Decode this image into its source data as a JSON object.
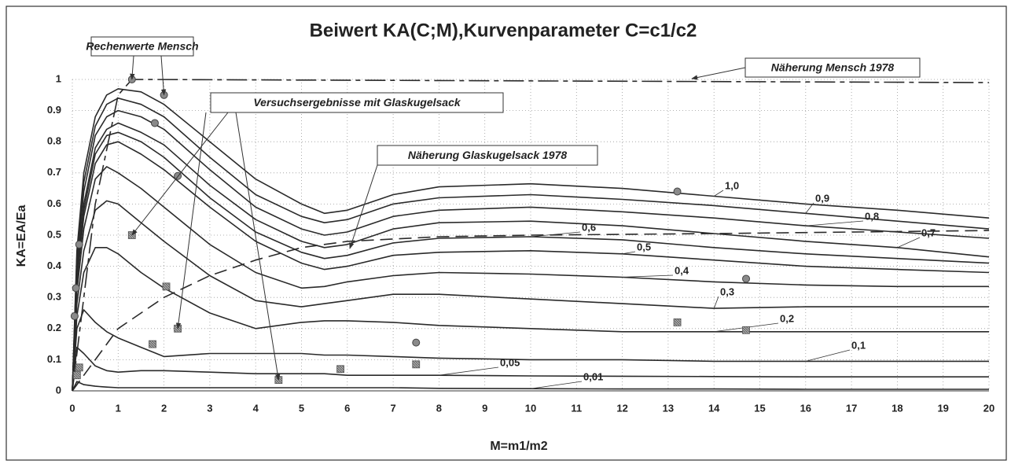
{
  "chart_data": {
    "type": "line",
    "title": "Beiwert KA(C;M),Kurvenparameter C=c1/c2",
    "x_label": "M=m1/m2",
    "y_label": "KA=EA/Ea",
    "xlim": [
      0,
      20
    ],
    "ylim": [
      0,
      1
    ],
    "xticks": [
      0,
      1,
      2,
      3,
      4,
      5,
      6,
      7,
      8,
      9,
      10,
      11,
      12,
      13,
      14,
      15,
      16,
      17,
      18,
      19,
      20
    ],
    "yticks": [
      0,
      0.1,
      0.2,
      0.3,
      0.4,
      0.5,
      0.6,
      0.7,
      0.8,
      0.9,
      1
    ],
    "grid": true,
    "x": [
      0,
      0.1,
      0.25,
      0.5,
      0.75,
      1,
      1.5,
      2,
      3,
      4,
      5,
      5.5,
      6,
      7,
      8,
      10,
      12,
      14,
      16,
      18,
      20
    ],
    "series": [
      {
        "name": "1,0",
        "color": "#2a2a2a",
        "values": [
          0,
          0.45,
          0.7,
          0.88,
          0.95,
          0.97,
          0.96,
          0.92,
          0.8,
          0.68,
          0.6,
          0.57,
          0.58,
          0.63,
          0.655,
          0.665,
          0.65,
          0.625,
          0.6,
          0.58,
          0.555
        ]
      },
      {
        "name": "0,9",
        "color": "#2a2a2a",
        "values": [
          0,
          0.43,
          0.67,
          0.85,
          0.92,
          0.94,
          0.92,
          0.88,
          0.75,
          0.63,
          0.56,
          0.54,
          0.55,
          0.6,
          0.62,
          0.63,
          0.615,
          0.595,
          0.57,
          0.545,
          0.52
        ]
      },
      {
        "name": "0,8",
        "color": "#2a2a2a",
        "values": [
          0,
          0.41,
          0.64,
          0.82,
          0.88,
          0.9,
          0.88,
          0.84,
          0.71,
          0.59,
          0.52,
          0.5,
          0.51,
          0.56,
          0.58,
          0.59,
          0.575,
          0.555,
          0.53,
          0.51,
          0.49
        ]
      },
      {
        "name": "0,7",
        "color": "#2a2a2a",
        "values": [
          0,
          0.38,
          0.6,
          0.78,
          0.84,
          0.86,
          0.83,
          0.79,
          0.66,
          0.55,
          0.48,
          0.46,
          0.47,
          0.52,
          0.54,
          0.545,
          0.53,
          0.505,
          0.48,
          0.46,
          0.43
        ]
      },
      {
        "name": "0,6",
        "color": "#2a2a2a",
        "values": [
          0,
          0.36,
          0.58,
          0.76,
          0.82,
          0.83,
          0.8,
          0.75,
          0.62,
          0.51,
          0.445,
          0.425,
          0.435,
          0.475,
          0.49,
          0.495,
          0.485,
          0.46,
          0.44,
          0.425,
          0.41
        ]
      },
      {
        "name": "0,5",
        "color": "#2a2a2a",
        "values": [
          0,
          0.35,
          0.56,
          0.73,
          0.79,
          0.8,
          0.76,
          0.71,
          0.59,
          0.48,
          0.41,
          0.39,
          0.4,
          0.435,
          0.445,
          0.45,
          0.44,
          0.42,
          0.4,
          0.39,
          0.38
        ]
      },
      {
        "name": "0,4",
        "color": "#2a2a2a",
        "values": [
          0,
          0.32,
          0.52,
          0.68,
          0.72,
          0.7,
          0.65,
          0.59,
          0.47,
          0.38,
          0.33,
          0.335,
          0.35,
          0.37,
          0.38,
          0.375,
          0.365,
          0.35,
          0.34,
          0.335,
          0.335
        ]
      },
      {
        "name": "0,3",
        "color": "#2a2a2a",
        "values": [
          0,
          0.28,
          0.45,
          0.58,
          0.61,
          0.6,
          0.54,
          0.48,
          0.37,
          0.29,
          0.27,
          0.28,
          0.29,
          0.31,
          0.31,
          0.295,
          0.28,
          0.265,
          0.27,
          0.27,
          0.27
        ]
      },
      {
        "name": "0,2",
        "color": "#2a2a2a",
        "values": [
          0,
          0.24,
          0.38,
          0.46,
          0.46,
          0.44,
          0.38,
          0.33,
          0.25,
          0.2,
          0.22,
          0.225,
          0.225,
          0.22,
          0.21,
          0.2,
          0.19,
          0.19,
          0.19,
          0.19,
          0.19
        ]
      },
      {
        "name": "0,1",
        "color": "#2a2a2a",
        "values": [
          0,
          0.2,
          0.26,
          0.22,
          0.19,
          0.17,
          0.14,
          0.11,
          0.12,
          0.12,
          0.12,
          0.115,
          0.115,
          0.11,
          0.105,
          0.1,
          0.1,
          0.095,
          0.095,
          0.095,
          0.095
        ]
      },
      {
        "name": "0,05",
        "color": "#2a2a2a",
        "values": [
          0,
          0.14,
          0.12,
          0.08,
          0.065,
          0.06,
          0.065,
          0.065,
          0.06,
          0.055,
          0.055,
          0.055,
          0.05,
          0.05,
          0.05,
          0.048,
          0.047,
          0.046,
          0.045,
          0.045,
          0.045
        ]
      },
      {
        "name": "0,01",
        "color": "#2a2a2a",
        "values": [
          0,
          0.03,
          0.02,
          0.015,
          0.012,
          0.01,
          0.01,
          0.01,
          0.01,
          0.01,
          0.01,
          0.01,
          0.01,
          0.01,
          0.008,
          0.007,
          0.006,
          0.006,
          0.005,
          0.005,
          0.005
        ]
      },
      {
        "name": "Näherung Mensch 1978",
        "color": "#555555",
        "style": "dash-dot",
        "x": [
          0,
          0.5,
          1,
          1.3,
          20
        ],
        "values": [
          0,
          0.6,
          0.95,
          1,
          0.99
        ]
      },
      {
        "name": "Näherung Glaskugelsack 1978",
        "color": "#444444",
        "style": "dash",
        "x": [
          0,
          0.5,
          1,
          2,
          3,
          4,
          5,
          6,
          8,
          10,
          14,
          20
        ],
        "values": [
          0,
          0.1,
          0.2,
          0.3,
          0.37,
          0.42,
          0.46,
          0.48,
          0.495,
          0.5,
          0.505,
          0.515
        ]
      },
      {
        "name": "Rechenwerte Mensch",
        "color": "#8a8a8a",
        "marker": "circle",
        "x": [
          0.05,
          0.08,
          0.15,
          1.3,
          2,
          1.8,
          2.3,
          7.5,
          13.2,
          14.7
        ],
        "values": [
          0.24,
          0.33,
          0.47,
          1,
          0.95,
          0.86,
          0.69,
          0.155,
          0.64,
          0.36
        ]
      },
      {
        "name": "Versuchsergebnisse mit Glaskugelsack",
        "color": "#9a9a9a",
        "marker": "square",
        "x": [
          0.1,
          0.15,
          1.3,
          1.75,
          2.05,
          2.3,
          4.5,
          5.85,
          7.5,
          13.2,
          14.7
        ],
        "values": [
          0.05,
          0.075,
          0.5,
          0.15,
          0.335,
          0.2,
          0.035,
          0.07,
          0.085,
          0.22,
          0.195
        ]
      }
    ]
  }
}
